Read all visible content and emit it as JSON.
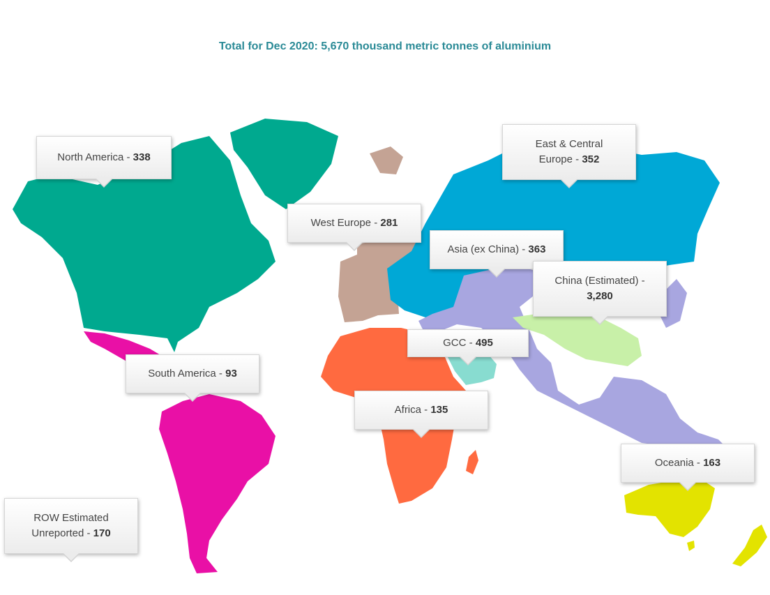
{
  "title": "Total for Dec 2020: 5,670 thousand metric tonnes of aluminium",
  "colors": {
    "north_america": "#00a98f",
    "south_america": "#e910a6",
    "west_europe": "#c4a394",
    "east_central_europe": "#00a8d6",
    "asia_ex_china": "#a8a6e0",
    "china": "#c8f0a8",
    "gcc": "#88dcd0",
    "africa": "#ff6a40",
    "oceania": "#e3e300"
  },
  "regions": [
    {
      "key": "north_america",
      "name": "North America",
      "value": "338"
    },
    {
      "key": "east_central_europe",
      "name_line1": "East & Central",
      "name_line2": "Europe",
      "value": "352"
    },
    {
      "key": "west_europe",
      "name": "West Europe",
      "value": "281"
    },
    {
      "key": "asia_ex_china",
      "name": "Asia (ex China)",
      "value": "363"
    },
    {
      "key": "china",
      "name_line1": "China (Estimated) -",
      "value": "3,280"
    },
    {
      "key": "gcc",
      "name": "GCC",
      "value": "495"
    },
    {
      "key": "south_america",
      "name": "South America",
      "value": "93"
    },
    {
      "key": "africa",
      "name": "Africa",
      "value": "135"
    },
    {
      "key": "oceania",
      "name": "Oceania",
      "value": "163"
    },
    {
      "key": "row",
      "name_line1": "ROW Estimated",
      "name_line2": "Unreported",
      "value": "170"
    }
  ]
}
